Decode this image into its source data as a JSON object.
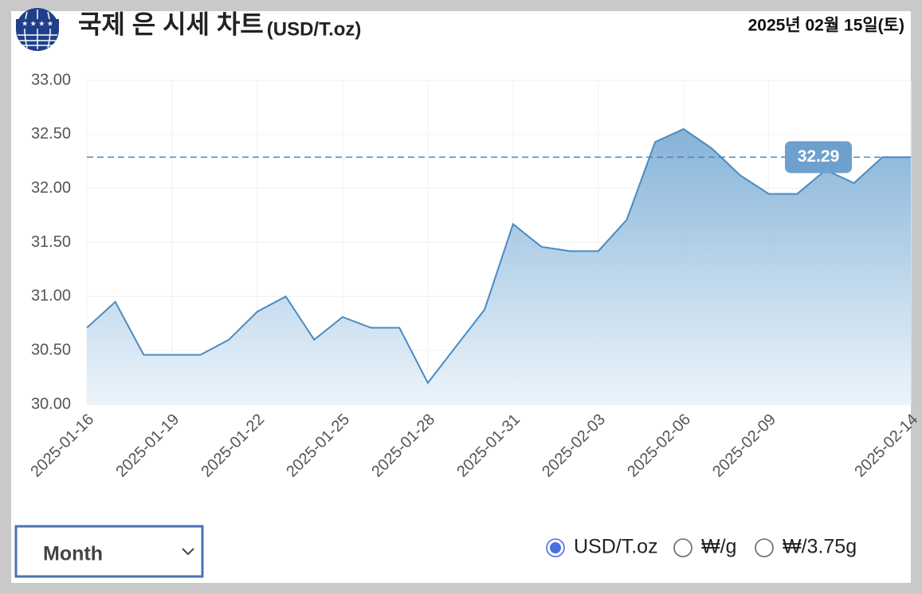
{
  "header": {
    "title": "국제 은 시세 차트",
    "unit": "(USD/T.oz)",
    "date": "2025년 02월 15일(토)"
  },
  "controls": {
    "period": "Month",
    "units": [
      {
        "label": "USD/T.oz",
        "selected": true
      },
      {
        "label": "₩/g",
        "selected": false
      },
      {
        "label": "₩/3.75g",
        "selected": false
      }
    ]
  },
  "chart_data": {
    "type": "area",
    "x": [
      "2025-01-16",
      "2025-01-17",
      "2025-01-18",
      "2025-01-19",
      "2025-01-20",
      "2025-01-21",
      "2025-01-22",
      "2025-01-23",
      "2025-01-24",
      "2025-01-25",
      "2025-01-26",
      "2025-01-27",
      "2025-01-28",
      "2025-01-29",
      "2025-01-30",
      "2025-01-31",
      "2025-02-01",
      "2025-02-02",
      "2025-02-03",
      "2025-02-04",
      "2025-02-05",
      "2025-02-06",
      "2025-02-07",
      "2025-02-08",
      "2025-02-09",
      "2025-02-10",
      "2025-02-11",
      "2025-02-12",
      "2025-02-13",
      "2025-02-14"
    ],
    "series": [
      {
        "color": "#4a8bc2",
        "values": [
          30.71,
          30.95,
          30.46,
          30.46,
          30.46,
          30.6,
          30.86,
          31.0,
          30.6,
          30.81,
          30.71,
          30.71,
          30.2,
          30.54,
          30.88,
          31.67,
          31.46,
          31.42,
          31.42,
          31.71,
          32.43,
          32.55,
          32.37,
          32.12,
          31.95,
          31.95,
          32.17,
          32.05,
          32.29,
          32.29
        ]
      }
    ],
    "ylim": [
      30,
      33
    ],
    "yticks": [
      {
        "value": 30,
        "label": "30.00"
      },
      {
        "value": 30.5,
        "label": "30.50"
      },
      {
        "value": 31,
        "label": "31.00"
      },
      {
        "value": 31.5,
        "label": "31.50"
      },
      {
        "value": 32,
        "label": "32.00"
      },
      {
        "value": 32.5,
        "label": "32.50"
      },
      {
        "value": 33,
        "label": "33.00"
      }
    ],
    "xticks": [
      "2025-01-16",
      "2025-01-19",
      "2025-01-22",
      "2025-01-25",
      "2025-01-28",
      "2025-01-31",
      "2025-02-03",
      "2025-02-06",
      "2025-02-09",
      "2025-02-14"
    ],
    "reference_line": {
      "value": 32.29
    },
    "grid": true
  }
}
